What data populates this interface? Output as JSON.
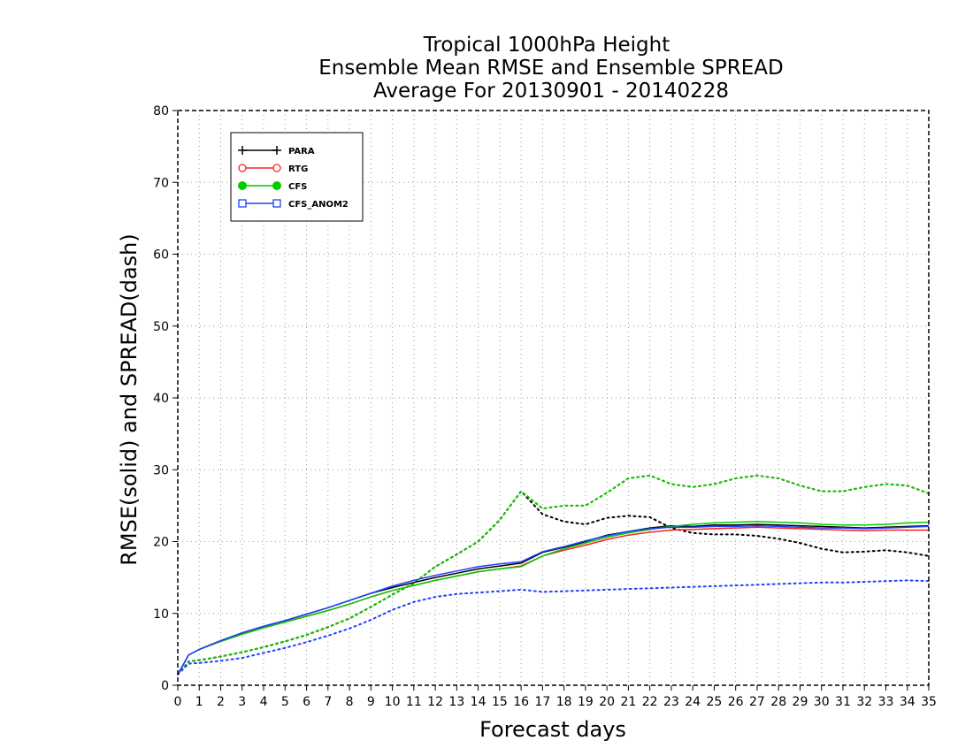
{
  "title": {
    "line1": "Tropical 1000hPa Height",
    "line2": "Ensemble Mean RMSE and Ensemble SPREAD",
    "line3": "Average For 20130901 - 20140228"
  },
  "chart_data": {
    "type": "line",
    "xlabel": "Forecast days",
    "ylabel": "RMSE(solid) and SPREAD(dash)",
    "xlim": [
      0,
      35
    ],
    "ylim": [
      0,
      80
    ],
    "x_ticks": [
      0,
      1,
      2,
      3,
      4,
      5,
      6,
      7,
      8,
      9,
      10,
      11,
      12,
      13,
      14,
      15,
      16,
      17,
      18,
      19,
      20,
      21,
      22,
      23,
      24,
      25,
      26,
      27,
      28,
      29,
      30,
      31,
      32,
      33,
      34,
      35
    ],
    "y_ticks": [
      0,
      10,
      20,
      30,
      40,
      50,
      60,
      70,
      80
    ],
    "grid": true,
    "legend_position": "top-left",
    "x": [
      0,
      0.5,
      1,
      2,
      3,
      4,
      5,
      6,
      7,
      8,
      9,
      10,
      11,
      12,
      13,
      14,
      15,
      16,
      17,
      18,
      19,
      20,
      21,
      22,
      23,
      24,
      25,
      26,
      27,
      28,
      29,
      30,
      31,
      32,
      33,
      34,
      35
    ],
    "series": [
      {
        "name": "PARA",
        "color": "#000000",
        "rmse": [
          1.5,
          4.2,
          5.0,
          6.2,
          7.3,
          8.2,
          9.0,
          9.9,
          10.8,
          11.8,
          12.8,
          13.6,
          14.3,
          15.0,
          15.6,
          16.2,
          16.6,
          17.0,
          18.5,
          19.2,
          20.0,
          20.9,
          21.4,
          21.9,
          22.2,
          22.1,
          22.3,
          22.3,
          22.4,
          22.3,
          22.2,
          22.1,
          22.0,
          21.9,
          22.0,
          22.1,
          22.2
        ],
        "spread": [
          1.5,
          3.3,
          3.5,
          4.0,
          4.6,
          5.3,
          6.1,
          7.0,
          8.1,
          9.3,
          10.9,
          12.6,
          14.2,
          16.5,
          18.2,
          20.0,
          23.0,
          27.0,
          23.8,
          22.8,
          22.4,
          23.3,
          23.6,
          23.4,
          21.9,
          21.2,
          21.0,
          21.0,
          20.8,
          20.4,
          19.8,
          19.0,
          18.5,
          18.6,
          18.8,
          18.5,
          18.0
        ]
      },
      {
        "name": "RTG",
        "color": "#ff2020",
        "rmse": [
          1.5,
          4.2,
          5.0,
          6.1,
          7.1,
          8.0,
          8.8,
          9.6,
          10.4,
          11.3,
          12.3,
          13.2,
          13.9,
          14.6,
          15.2,
          15.8,
          16.2,
          16.6,
          18.0,
          18.8,
          19.5,
          20.3,
          20.9,
          21.3,
          21.6,
          21.7,
          21.8,
          21.9,
          22.0,
          21.9,
          21.8,
          21.7,
          21.6,
          21.5,
          21.6,
          21.6,
          21.6
        ],
        "spread": [
          1.5,
          3.3,
          3.5,
          4.0,
          4.6,
          5.3,
          6.1,
          7.0,
          8.1,
          9.3,
          10.9,
          12.6,
          14.2,
          16.5,
          18.2,
          20.0,
          23.0,
          27.0,
          24.6,
          25.0,
          25.0,
          26.8,
          28.8,
          29.2,
          28.0,
          27.6,
          28.0,
          28.8,
          29.2,
          28.8,
          27.8,
          27.0,
          27.0,
          27.6,
          28.0,
          27.8,
          26.7
        ]
      },
      {
        "name": "CFS",
        "color": "#00cc00",
        "rmse": [
          1.5,
          4.2,
          5.0,
          6.1,
          7.1,
          8.0,
          8.8,
          9.6,
          10.4,
          11.3,
          12.3,
          13.2,
          13.9,
          14.6,
          15.2,
          15.8,
          16.2,
          16.5,
          18.0,
          19.0,
          19.8,
          20.6,
          21.2,
          21.7,
          22.1,
          22.4,
          22.6,
          22.7,
          22.8,
          22.7,
          22.6,
          22.4,
          22.3,
          22.3,
          22.4,
          22.6,
          22.7
        ],
        "spread": [
          1.5,
          3.3,
          3.5,
          4.0,
          4.6,
          5.3,
          6.1,
          7.0,
          8.1,
          9.3,
          10.9,
          12.6,
          14.2,
          16.5,
          18.2,
          20.0,
          23.0,
          27.0,
          24.6,
          25.0,
          25.0,
          26.8,
          28.8,
          29.2,
          28.0,
          27.6,
          28.0,
          28.8,
          29.2,
          28.8,
          27.8,
          27.0,
          27.0,
          27.6,
          28.0,
          27.8,
          26.7
        ]
      },
      {
        "name": "CFS_ANOM2",
        "color": "#2040ff",
        "rmse": [
          1.5,
          4.2,
          5.0,
          6.2,
          7.3,
          8.2,
          9.0,
          9.9,
          10.8,
          11.8,
          12.8,
          13.8,
          14.6,
          15.3,
          15.9,
          16.5,
          16.9,
          17.2,
          18.6,
          19.3,
          20.1,
          20.8,
          21.4,
          21.8,
          22.0,
          22.0,
          22.1,
          22.1,
          22.2,
          22.1,
          22.0,
          21.9,
          21.9,
          21.8,
          21.9,
          22.0,
          22.1
        ],
        "spread": [
          1.5,
          3.0,
          3.1,
          3.4,
          3.8,
          4.5,
          5.2,
          6.0,
          6.9,
          7.9,
          9.1,
          10.5,
          11.6,
          12.3,
          12.7,
          12.9,
          13.1,
          13.3,
          13.0,
          13.1,
          13.2,
          13.3,
          13.4,
          13.5,
          13.6,
          13.7,
          13.8,
          13.9,
          14.0,
          14.1,
          14.2,
          14.3,
          14.3,
          14.4,
          14.5,
          14.6,
          14.5
        ]
      }
    ]
  }
}
